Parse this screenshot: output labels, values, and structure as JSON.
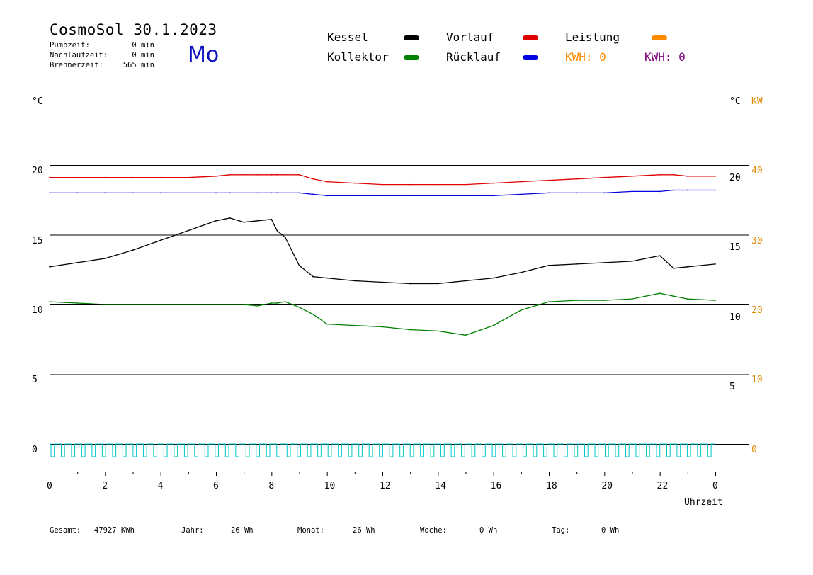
{
  "header": {
    "title": "CosmoSol 30.1.2023",
    "day": "Mo",
    "stats": [
      {
        "label": "Pumpzeit:",
        "value": "0 min"
      },
      {
        "label": "Nachlaufzeit:",
        "value": "0 min"
      },
      {
        "label": "Brennerzeit:",
        "value": "565 min"
      }
    ]
  },
  "legend": {
    "kessel": "Kessel",
    "kollektor": "Kollektor",
    "vorlauf": "Vorlauf",
    "ruecklauf": "Rücklauf",
    "leistung": "Leistung",
    "kwh1": "KWH: 0",
    "kwh2": "KWH: 0"
  },
  "axis": {
    "left_unit": "°C",
    "right_unit_c": "°C",
    "right_unit_kw": "KW",
    "xlabel": "Uhrzeit"
  },
  "footer": {
    "gesamt_label": "Gesamt:",
    "gesamt_value": "47927 KWh",
    "jahr_label": "Jahr:",
    "jahr_value": "26 Wh",
    "monat_label": "Monat:",
    "monat_value": "26 Wh",
    "woche_label": "Woche:",
    "woche_value": "0 Wh",
    "tag_label": "Tag:",
    "tag_value": "0 Wh"
  },
  "colors": {
    "kessel": "#000000",
    "kollektor": "#008000",
    "vorlauf": "#e00000",
    "ruecklauf": "#0000e0",
    "leistung": "#ff8c00",
    "kwh2": "#800080",
    "pump": "#00c8c8",
    "kw_axis": "#e08800"
  },
  "chart_data": {
    "type": "line",
    "x": [
      0,
      1,
      2,
      3,
      4,
      5,
      6,
      6.5,
      7,
      7.5,
      8,
      8.2,
      8.5,
      9,
      9.5,
      10,
      11,
      12,
      13,
      14,
      15,
      16,
      17,
      18,
      19,
      20,
      21,
      22,
      22.5,
      23,
      24
    ],
    "xticks": [
      "0",
      "2",
      "4",
      "6",
      "8",
      "10",
      "12",
      "14",
      "16",
      "18",
      "20",
      "22",
      "0"
    ],
    "xlabel": "Uhrzeit",
    "ylim_left": [
      -3,
      20
    ],
    "yticks_left": [
      "20",
      "15",
      "10",
      "5",
      "0"
    ],
    "yticks_right_c": [
      "20",
      "15",
      "10",
      "5"
    ],
    "yticks_right_kw": [
      "40",
      "30",
      "20",
      "10",
      "0"
    ],
    "grid": "horizontal",
    "series": [
      {
        "name": "Vorlauf",
        "values": [
          19.1,
          19.1,
          19.1,
          19.1,
          19.1,
          19.1,
          19.2,
          19.3,
          19.3,
          19.3,
          19.3,
          19.3,
          19.3,
          19.3,
          19.0,
          18.8,
          18.7,
          18.6,
          18.6,
          18.6,
          18.6,
          18.7,
          18.8,
          18.9,
          19.0,
          19.1,
          19.2,
          19.3,
          19.3,
          19.2,
          19.2
        ]
      },
      {
        "name": "Rücklauf",
        "values": [
          18.0,
          18.0,
          18.0,
          18.0,
          18.0,
          18.0,
          18.0,
          18.0,
          18.0,
          18.0,
          18.0,
          18.0,
          18.0,
          18.0,
          17.9,
          17.8,
          17.8,
          17.8,
          17.8,
          17.8,
          17.8,
          17.8,
          17.9,
          18.0,
          18.0,
          18.0,
          18.1,
          18.1,
          18.2,
          18.2,
          18.2
        ]
      },
      {
        "name": "Kessel",
        "values": [
          12.7,
          13.0,
          13.3,
          13.9,
          14.6,
          15.3,
          16.0,
          16.2,
          15.9,
          16.0,
          16.1,
          15.3,
          14.8,
          12.8,
          12.0,
          11.9,
          11.7,
          11.6,
          11.5,
          11.5,
          11.7,
          11.9,
          12.3,
          12.8,
          12.9,
          13.0,
          13.1,
          13.5,
          12.6,
          12.7,
          12.9
        ]
      },
      {
        "name": "Kollektor",
        "values": [
          10.2,
          10.1,
          10.0,
          10.0,
          10.0,
          10.0,
          10.0,
          10.0,
          10.0,
          9.9,
          10.1,
          10.1,
          10.2,
          9.8,
          9.3,
          8.6,
          8.5,
          8.4,
          8.2,
          8.1,
          7.8,
          8.5,
          9.6,
          10.2,
          10.3,
          10.3,
          10.4,
          10.8,
          10.6,
          10.4,
          10.3
        ]
      }
    ]
  }
}
